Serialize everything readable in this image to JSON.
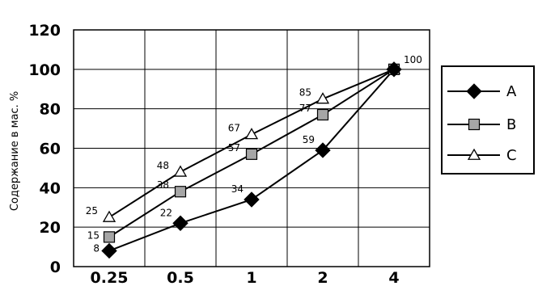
{
  "chart_data": {
    "type": "line",
    "title": "",
    "xlabel": "",
    "ylabel": "Содержание в мас. %",
    "categories": [
      "0.25",
      "0.5",
      "1",
      "2",
      "4"
    ],
    "ylim": [
      0,
      120
    ],
    "yticks": [
      "0",
      "20",
      "40",
      "60",
      "80",
      "100",
      "120"
    ],
    "grid": true,
    "legend_position": "right",
    "series": [
      {
        "name": "A",
        "marker": "diamond",
        "marker_color": "#000000",
        "values": [
          8,
          22,
          34,
          59,
          100
        ],
        "labels": [
          "8",
          "22",
          "34",
          "59",
          ""
        ]
      },
      {
        "name": "B",
        "marker": "square",
        "marker_color": "#a6a6a6",
        "values": [
          15,
          38,
          57,
          77,
          100
        ],
        "labels": [
          "15",
          "38",
          "57",
          "77",
          ""
        ]
      },
      {
        "name": "C",
        "marker": "triangle",
        "marker_color": "#ffffff",
        "values": [
          25,
          48,
          67,
          85,
          100
        ],
        "labels": [
          "25",
          "48",
          "67",
          "85",
          "100"
        ]
      }
    ]
  }
}
